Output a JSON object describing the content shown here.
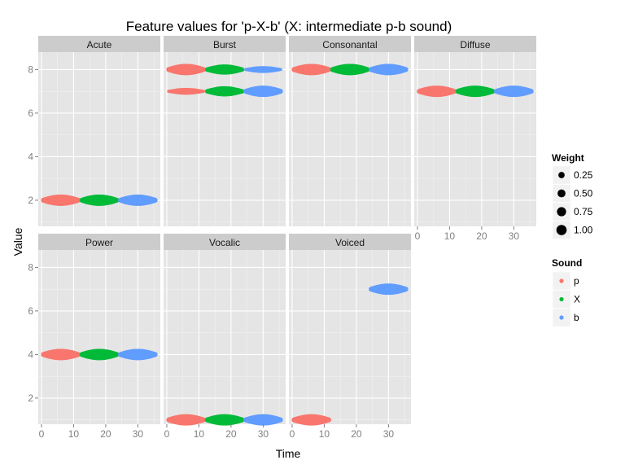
{
  "chart_data": {
    "type": "scatter",
    "title": "Feature values for 'p-X-b' (X: intermediate p-b sound)",
    "xlabel": "Time",
    "ylabel": "Value",
    "xlim": [
      -1,
      37
    ],
    "ylim": [
      0.8,
      8.8
    ],
    "x_ticks": [
      0,
      10,
      20,
      30
    ],
    "y_ticks": [
      2,
      4,
      6,
      8
    ],
    "grid": true,
    "legend_position": "right",
    "colors": {
      "p": "#F8766D",
      "X": "#00BA38",
      "b": "#619CFF"
    },
    "legend": {
      "weight": {
        "title": "Weight",
        "items": [
          "0.25",
          "0.50",
          "0.75",
          "1.00"
        ],
        "values": [
          0.25,
          0.5,
          0.75,
          1.0
        ]
      },
      "sound": {
        "title": "Sound",
        "items": [
          "p",
          "X",
          "b"
        ]
      }
    },
    "segments": {
      "p": {
        "x_start": 0,
        "x_end": 12
      },
      "X": {
        "x_start": 12,
        "x_end": 24
      },
      "b": {
        "x_start": 24,
        "x_end": 36
      }
    },
    "panels": [
      {
        "name": "Acute",
        "series": [
          {
            "sound": "p",
            "value": 2,
            "weight": 1.0
          },
          {
            "sound": "X",
            "value": 2,
            "weight": 1.0
          },
          {
            "sound": "b",
            "value": 2,
            "weight": 1.0
          }
        ]
      },
      {
        "name": "Burst",
        "series": [
          {
            "sound": "p",
            "value": 8,
            "weight": 1.0
          },
          {
            "sound": "p",
            "value": 7,
            "weight": 0.25
          },
          {
            "sound": "X",
            "value": 8,
            "weight": 0.75
          },
          {
            "sound": "X",
            "value": 7,
            "weight": 0.75
          },
          {
            "sound": "b",
            "value": 8,
            "weight": 0.25
          },
          {
            "sound": "b",
            "value": 7,
            "weight": 1.0
          }
        ]
      },
      {
        "name": "Consonantal",
        "series": [
          {
            "sound": "p",
            "value": 8,
            "weight": 1.0
          },
          {
            "sound": "X",
            "value": 8,
            "weight": 1.0
          },
          {
            "sound": "b",
            "value": 8,
            "weight": 1.0
          }
        ]
      },
      {
        "name": "Diffuse",
        "series": [
          {
            "sound": "p",
            "value": 7,
            "weight": 1.0
          },
          {
            "sound": "X",
            "value": 7,
            "weight": 1.0
          },
          {
            "sound": "b",
            "value": 7,
            "weight": 1.0
          }
        ]
      },
      {
        "name": "Power",
        "series": [
          {
            "sound": "p",
            "value": 4,
            "weight": 1.0
          },
          {
            "sound": "X",
            "value": 4,
            "weight": 1.0
          },
          {
            "sound": "b",
            "value": 4,
            "weight": 1.0
          }
        ]
      },
      {
        "name": "Vocalic",
        "series": [
          {
            "sound": "p",
            "value": 1,
            "weight": 1.0
          },
          {
            "sound": "X",
            "value": 1,
            "weight": 1.0
          },
          {
            "sound": "b",
            "value": 1,
            "weight": 1.0
          }
        ]
      },
      {
        "name": "Voiced",
        "series": [
          {
            "sound": "p",
            "value": 1,
            "weight": 1.0
          },
          {
            "sound": "b",
            "value": 7,
            "weight": 1.0
          }
        ]
      }
    ]
  }
}
